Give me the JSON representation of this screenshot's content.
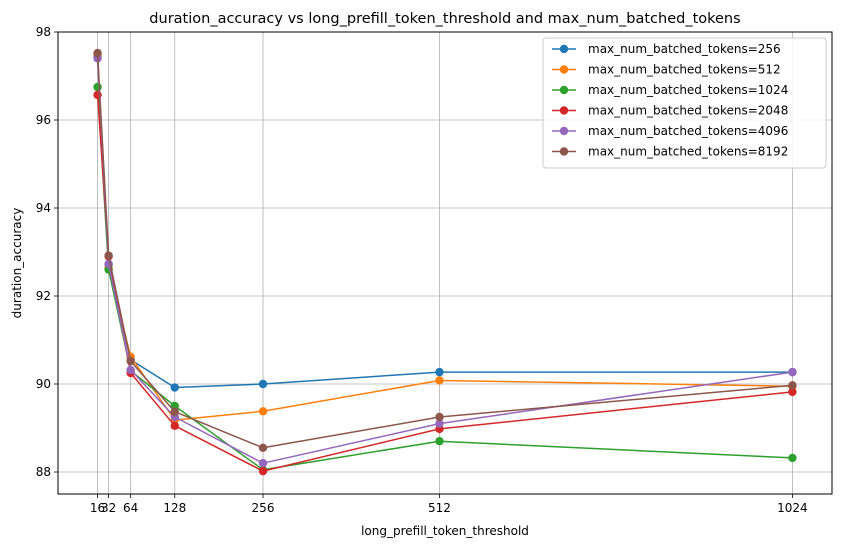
{
  "chart_data": {
    "type": "line",
    "title": "duration_accuracy vs long_prefill_token_threshold and max_num_batched_tokens",
    "xlabel": "long_prefill_token_threshold",
    "ylabel": "duration_accuracy",
    "x": [
      16,
      32,
      64,
      128,
      256,
      512,
      1024
    ],
    "xticks": [
      16,
      32,
      64,
      128,
      256,
      512,
      1024
    ],
    "xtick_labels": [
      "16",
      "32",
      "64",
      "128",
      "256",
      "512",
      "1024"
    ],
    "yticks": [
      88,
      90,
      92,
      94,
      96,
      98
    ],
    "ytick_labels": [
      "88",
      "90",
      "92",
      "94",
      "96",
      "98"
    ],
    "xlim": [
      -41.4,
      1081.4
    ],
    "ylim": [
      87.5,
      98.0
    ],
    "grid": true,
    "legend_position": "top-right",
    "series": [
      {
        "name": "max_num_batched_tokens=256",
        "color": "#1f77b4",
        "values": [
          97.42,
          92.72,
          90.55,
          89.92,
          90.0,
          90.27,
          90.27
        ]
      },
      {
        "name": "max_num_batched_tokens=512",
        "color": "#ff7f0e",
        "values": [
          97.48,
          92.65,
          90.62,
          89.18,
          89.38,
          90.08,
          89.95
        ]
      },
      {
        "name": "max_num_batched_tokens=1024",
        "color": "#2ca02c",
        "values": [
          96.75,
          92.6,
          90.3,
          89.5,
          88.05,
          88.7,
          88.32
        ]
      },
      {
        "name": "max_num_batched_tokens=2048",
        "color": "#d62728",
        "values": [
          96.57,
          92.9,
          90.25,
          89.05,
          88.02,
          88.98,
          89.82
        ]
      },
      {
        "name": "max_num_batched_tokens=4096",
        "color": "#9467bd",
        "values": [
          97.4,
          92.73,
          90.32,
          89.25,
          88.2,
          89.1,
          90.27
        ]
      },
      {
        "name": "max_num_batched_tokens=8192",
        "color": "#8c564b",
        "values": [
          97.52,
          92.92,
          90.52,
          89.37,
          88.55,
          89.25,
          89.97
        ]
      }
    ]
  }
}
